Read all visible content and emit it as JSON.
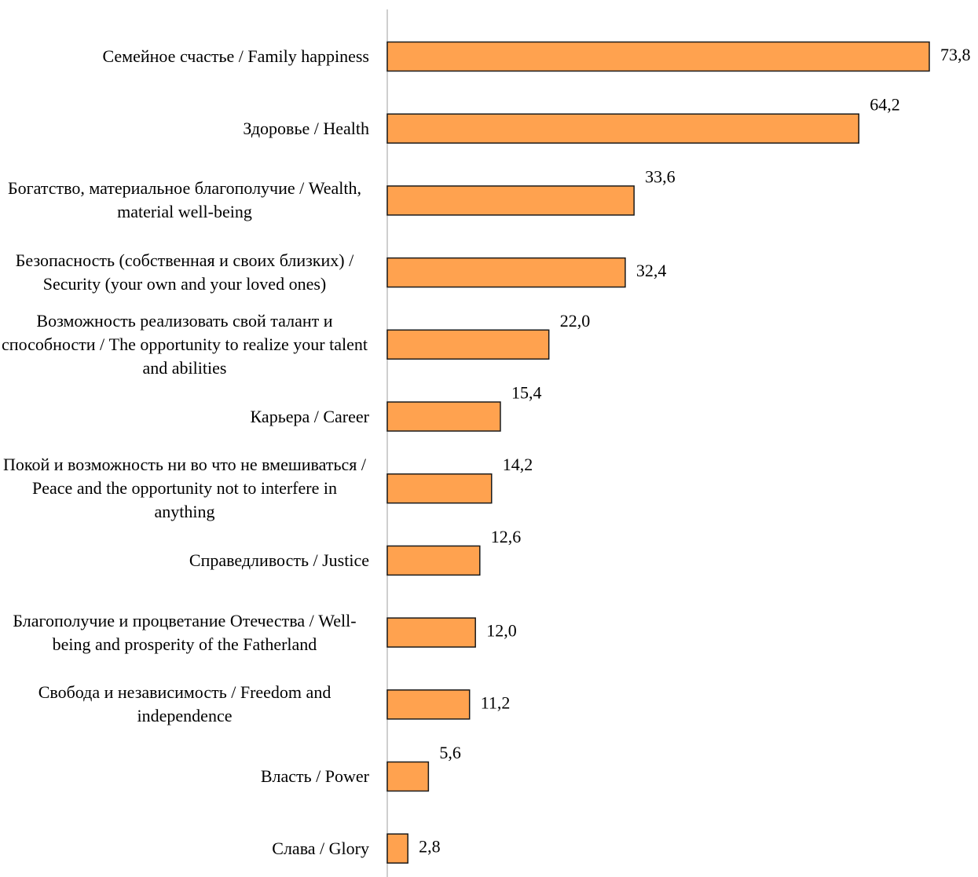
{
  "chart_data": {
    "type": "bar",
    "orientation": "horizontal",
    "categories": [
      "Семейное счастье / Family happiness",
      "Здоровье / Health",
      "Богатство, материальное благополучие / Wealth, material well-being",
      "Безопасность (собственная и своих близких) / Security (your own and your loved ones)",
      "Возможность реализовать свой талант и способности / The opportunity to realize your talent and abilities",
      "Карьера / Career",
      "Покой и возможность ни во что не вмешиваться / Peace and the opportunity not to interfere in anything",
      "Справедливость / Justice",
      "Благополучие и процветание Отечества / Well-being and prosperity of the Fatherland",
      "Свобода и независимость / Freedom and independence",
      "Власть / Power",
      "Слава / Glory"
    ],
    "values": [
      73.8,
      64.2,
      33.6,
      32.4,
      22.0,
      15.4,
      14.2,
      12.6,
      12.0,
      11.2,
      5.6,
      2.8
    ],
    "value_labels": [
      "73,8",
      "64,2",
      "33,6",
      "32,4",
      "22,0",
      "15,4",
      "14,2",
      "12,6",
      "12,0",
      "11,2",
      "5,6",
      "2,8"
    ],
    "color": "#ffa24f"
  }
}
